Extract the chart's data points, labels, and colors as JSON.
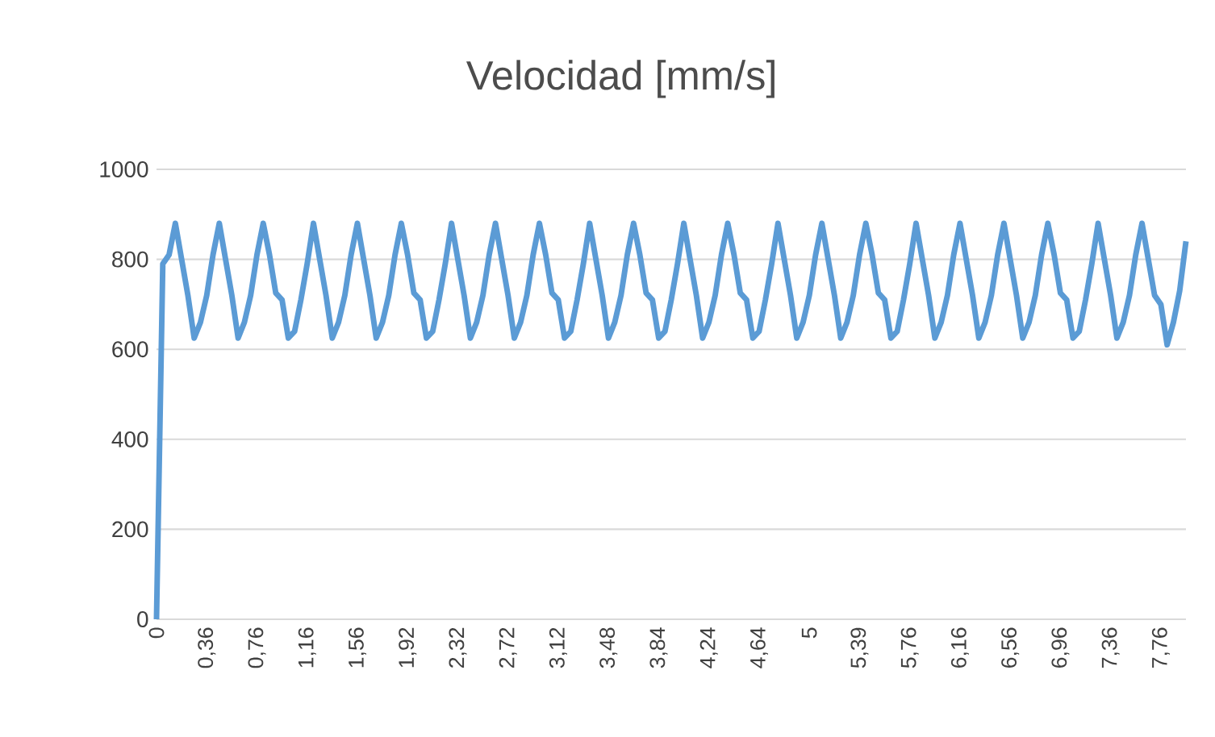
{
  "chart_data": {
    "type": "line",
    "title": "Velocidad [mm/s]",
    "categories": [
      "0",
      null,
      null,
      null,
      null,
      null,
      null,
      null,
      "0,36",
      null,
      null,
      null,
      null,
      null,
      null,
      null,
      "0,76",
      null,
      null,
      null,
      null,
      null,
      null,
      null,
      "1,16",
      null,
      null,
      null,
      null,
      null,
      null,
      null,
      "1,56",
      null,
      null,
      null,
      null,
      null,
      null,
      null,
      "1,92",
      null,
      null,
      null,
      null,
      null,
      null,
      null,
      "2,32",
      null,
      null,
      null,
      null,
      null,
      null,
      null,
      "2,72",
      null,
      null,
      null,
      null,
      null,
      null,
      null,
      "3,12",
      null,
      null,
      null,
      null,
      null,
      null,
      null,
      "3,48",
      null,
      null,
      null,
      null,
      null,
      null,
      null,
      "3,84",
      null,
      null,
      null,
      null,
      null,
      null,
      null,
      "4,24",
      null,
      null,
      null,
      null,
      null,
      null,
      null,
      "4,64",
      null,
      null,
      null,
      null,
      null,
      null,
      null,
      "5",
      null,
      null,
      null,
      null,
      null,
      null,
      null,
      "5,39",
      null,
      null,
      null,
      null,
      null,
      null,
      null,
      "5,76",
      null,
      null,
      null,
      null,
      null,
      null,
      null,
      "6,16",
      null,
      null,
      null,
      null,
      null,
      null,
      null,
      "6,56",
      null,
      null,
      null,
      null,
      null,
      null,
      null,
      "6,96",
      null,
      null,
      null,
      null,
      null,
      null,
      null,
      "7,36",
      null,
      null,
      null,
      null,
      null,
      null,
      null,
      "7,76",
      null,
      null,
      null,
      null
    ],
    "values": [
      0,
      790,
      810,
      880,
      800,
      720,
      625,
      660,
      720,
      810,
      880,
      800,
      720,
      625,
      660,
      720,
      810,
      880,
      810,
      725,
      710,
      625,
      640,
      710,
      790,
      880,
      800,
      720,
      625,
      660,
      720,
      810,
      880,
      800,
      720,
      625,
      660,
      720,
      810,
      880,
      810,
      725,
      710,
      625,
      640,
      710,
      790,
      880,
      800,
      720,
      625,
      660,
      720,
      810,
      880,
      800,
      720,
      625,
      660,
      720,
      810,
      880,
      810,
      725,
      710,
      625,
      640,
      710,
      790,
      880,
      800,
      720,
      625,
      660,
      720,
      810,
      880,
      810,
      725,
      710,
      625,
      640,
      710,
      790,
      880,
      800,
      720,
      625,
      660,
      720,
      810,
      880,
      810,
      725,
      710,
      625,
      640,
      710,
      790,
      880,
      800,
      720,
      625,
      660,
      720,
      810,
      880,
      800,
      720,
      625,
      660,
      720,
      810,
      880,
      810,
      725,
      710,
      625,
      640,
      710,
      790,
      880,
      800,
      720,
      625,
      660,
      720,
      810,
      880,
      800,
      720,
      625,
      660,
      720,
      810,
      880,
      800,
      720,
      625,
      660,
      720,
      810,
      880,
      810,
      725,
      710,
      625,
      640,
      710,
      790,
      880,
      800,
      720,
      625,
      660,
      720,
      810,
      880,
      800,
      720,
      700,
      610,
      660,
      730,
      840
    ],
    "color": "#5b9bd5",
    "ylim": [
      0,
      1000
    ],
    "yticks": [
      0,
      200,
      400,
      600,
      800,
      1000
    ],
    "grid": "y"
  }
}
